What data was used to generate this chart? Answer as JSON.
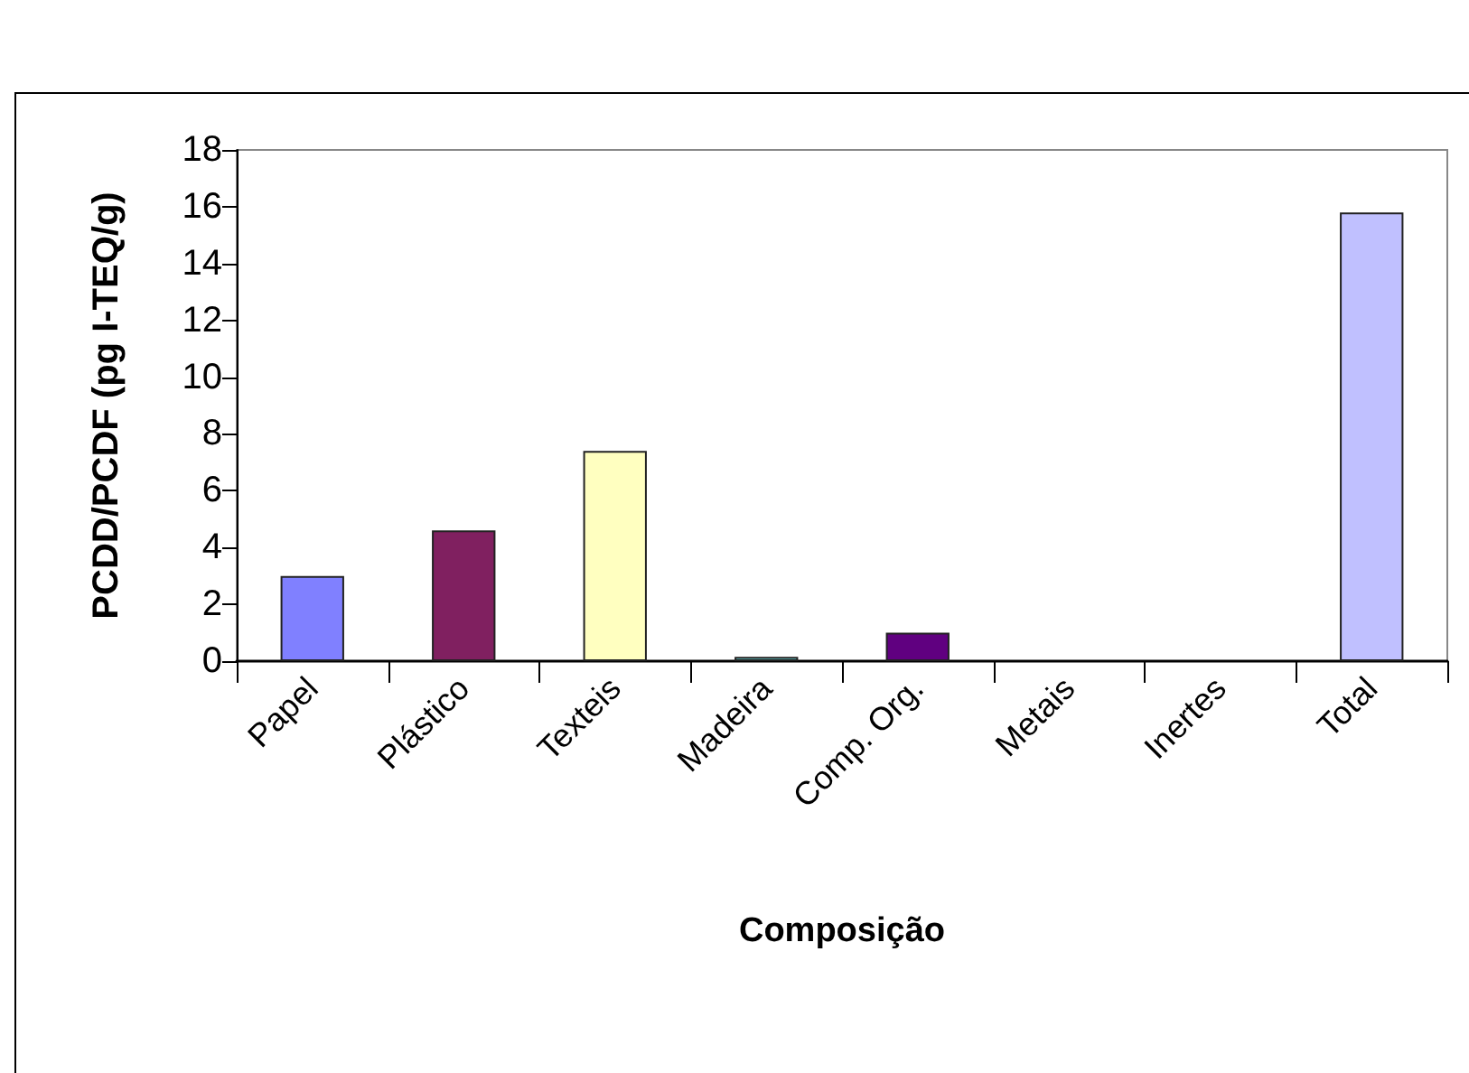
{
  "chart_data": {
    "type": "bar",
    "xlabel": "Composição",
    "ylabel": "PCDD/PCDF (pg I-TEQ/g)",
    "categories": [
      "Papel",
      "Plástico",
      "Texteis",
      "Madeira",
      "Comp. Org.",
      "Metais",
      "Inertes",
      "Total"
    ],
    "values": [
      3.0,
      4.6,
      7.4,
      0.15,
      1.0,
      0,
      0,
      15.8
    ],
    "colors": [
      "#8080ff",
      "#802060",
      "#ffffc0",
      "#66cccc",
      "#600080",
      "#8080ff",
      "#802060",
      "#c0c0ff"
    ],
    "ylim": [
      0,
      18
    ],
    "yticks": [
      0,
      2,
      4,
      6,
      8,
      10,
      12,
      14,
      16,
      18
    ],
    "grid": false
  }
}
